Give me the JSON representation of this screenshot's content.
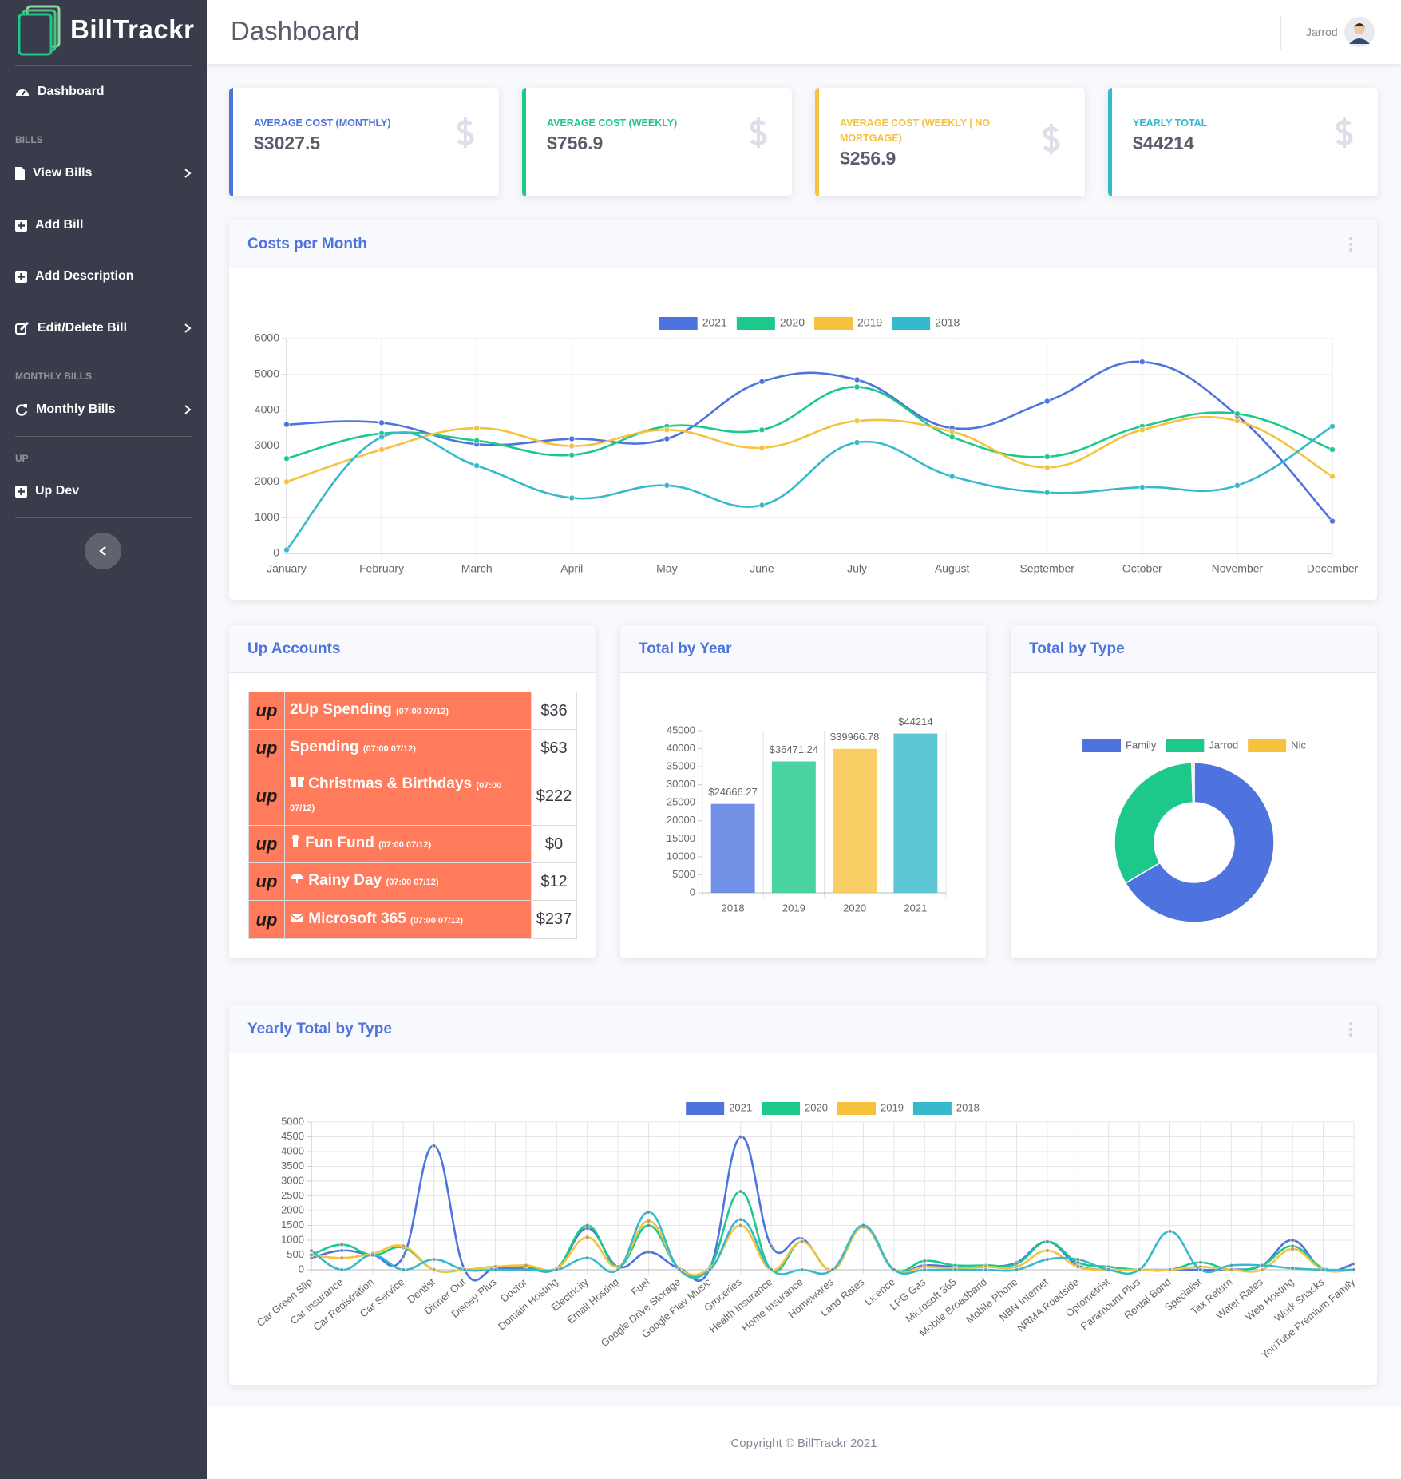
{
  "sidebar": {
    "brand": "BillTrackr",
    "dashboard": "Dashboard",
    "sections": [
      {
        "heading": "BILLS",
        "items": [
          "View Bills",
          "Add Bill",
          "Add Description",
          "Edit/Delete Bill"
        ]
      },
      {
        "heading": "MONTHLY BILLS",
        "items": [
          "Monthly Bills"
        ]
      },
      {
        "heading": "UP",
        "items": [
          "Up Dev"
        ]
      }
    ]
  },
  "header": {
    "title": "Dashboard",
    "user": "Jarrod"
  },
  "cards": [
    {
      "label": "AVERAGE COST (MONTHLY)",
      "value": "$3027.5"
    },
    {
      "label": "AVERAGE COST (WEEKLY)",
      "value": "$756.9"
    },
    {
      "label": "AVERAGE COST (WEEKLY | NO MORTGAGE)",
      "value": "$256.9"
    },
    {
      "label": "YEARLY TOTAL",
      "value": "$44214"
    }
  ],
  "up_accounts": {
    "title": "Up Accounts",
    "logo": "up",
    "rows": [
      {
        "name": "2Up Spending",
        "time": "(07:00 07/12)",
        "amount": "$36"
      },
      {
        "name": "Spending",
        "time": "(07:00 07/12)",
        "amount": "$63"
      },
      {
        "name": "Christmas & Birthdays",
        "time": "(07:00 07/12)",
        "amount": "$222"
      },
      {
        "name": "Fun Fund",
        "time": "(07:00 07/12)",
        "amount": "$0"
      },
      {
        "name": "Rainy Day",
        "time": "(07:00 07/12)",
        "amount": "$12"
      },
      {
        "name": "Microsoft 365",
        "time": "(07:00 07/12)",
        "amount": "$237"
      }
    ]
  },
  "chart_data": [
    {
      "type": "line",
      "title": "Costs per Month",
      "categories": [
        "January",
        "February",
        "March",
        "April",
        "May",
        "June",
        "July",
        "August",
        "September",
        "October",
        "November",
        "December"
      ],
      "series": [
        {
          "name": "2021",
          "color": "#4e73df",
          "values": [
            3600,
            3650,
            3050,
            3200,
            3200,
            4800,
            4850,
            3500,
            4250,
            5350,
            3850,
            900
          ]
        },
        {
          "name": "2020",
          "color": "#1cc88a",
          "values": [
            2650,
            3350,
            3150,
            2750,
            3550,
            3450,
            4650,
            3250,
            2700,
            3550,
            3900,
            2900
          ]
        },
        {
          "name": "2019",
          "color": "#f6c23e",
          "values": [
            2000,
            2900,
            3500,
            3000,
            3450,
            2950,
            3700,
            3400,
            2400,
            3450,
            3700,
            2150
          ]
        },
        {
          "name": "2018",
          "color": "#36b9cc",
          "values": [
            100,
            3250,
            2450,
            1550,
            1900,
            1350,
            3100,
            2150,
            1700,
            1850,
            1900,
            3550
          ]
        }
      ],
      "ylim": [
        0,
        6000
      ],
      "yticks": [
        0,
        1000,
        2000,
        3000,
        4000,
        5000,
        6000
      ],
      "grid": true
    },
    {
      "type": "bar",
      "title": "Total by Year",
      "categories": [
        "2018",
        "2019",
        "2020",
        "2021"
      ],
      "values": [
        24666.27,
        36471.24,
        39966.78,
        44214
      ],
      "value_labels": [
        "$24666.27",
        "$36471.24",
        "$39966.78",
        "$44214"
      ],
      "colors": [
        "#4e73df",
        "#1cc88a",
        "#f6c23e",
        "#36b9cc"
      ],
      "ylim": [
        0,
        45000
      ],
      "yticks": [
        0,
        5000,
        10000,
        15000,
        20000,
        25000,
        30000,
        35000,
        40000,
        45000
      ]
    },
    {
      "type": "doughnut",
      "title": "Total by Type",
      "labels": [
        "Family",
        "Jarrod",
        "Nic"
      ],
      "values": [
        66.5,
        33,
        0.5
      ],
      "colors": [
        "#4e73df",
        "#1cc88a",
        "#f6c23e"
      ]
    },
    {
      "type": "line",
      "title": "Yearly Total by Type",
      "categories": [
        "Car Green Slip",
        "Car Insurance",
        "Car Registration",
        "Car Service",
        "Dentist",
        "Dinner Out",
        "Disney Plus",
        "Doctor",
        "Domain Hosting",
        "Electricity",
        "Email Hosting",
        "Fuel",
        "Google Drive Storage",
        "Google Play Music",
        "Groceries",
        "Health Insurance",
        "Home Insurance",
        "Homewares",
        "Land Rates",
        "Licence",
        "LPG Gas",
        "Microsoft 365",
        "Mobile Broadband",
        "Mobile Phone",
        "NBN Internet",
        "NRMA Roadside",
        "Optometrist",
        "Paramount Plus",
        "Rental Bond",
        "Specialist",
        "Tax Return",
        "Water Rates",
        "Web Hosting",
        "Work Snacks",
        "YouTube Premium Family"
      ],
      "series": [
        {
          "name": "2021",
          "color": "#4e73df",
          "values": [
            400,
            650,
            500,
            450,
            4200,
            0,
            50,
            50,
            50,
            1400,
            100,
            600,
            50,
            50,
            4500,
            800,
            1050,
            0,
            1500,
            0,
            150,
            100,
            100,
            250,
            950,
            150,
            0,
            0,
            0,
            0,
            0,
            150,
            1000,
            0,
            200
          ]
        },
        {
          "name": "2020",
          "color": "#1cc88a",
          "values": [
            500,
            850,
            500,
            750,
            0,
            0,
            100,
            100,
            50,
            1500,
            100,
            1500,
            50,
            100,
            2650,
            0,
            950,
            0,
            1450,
            0,
            300,
            150,
            150,
            200,
            950,
            250,
            100,
            0,
            0,
            250,
            0,
            150,
            800,
            50,
            0
          ]
        },
        {
          "name": "2019",
          "color": "#f6c23e",
          "values": [
            500,
            400,
            550,
            800,
            0,
            0,
            100,
            150,
            50,
            1100,
            100,
            1650,
            50,
            50,
            1500,
            0,
            950,
            0,
            1450,
            0,
            100,
            50,
            100,
            100,
            650,
            100,
            0,
            0,
            0,
            100,
            0,
            0,
            700,
            0,
            0
          ]
        },
        {
          "name": "2018",
          "color": "#36b9cc",
          "values": [
            650,
            0,
            500,
            0,
            350,
            0,
            0,
            0,
            0,
            400,
            0,
            1950,
            0,
            0,
            1700,
            0,
            0,
            0,
            1500,
            0,
            0,
            0,
            0,
            0,
            350,
            350,
            0,
            0,
            1300,
            0,
            150,
            150,
            50,
            0,
            0
          ]
        }
      ],
      "ylim": [
        0,
        5000
      ],
      "yticks": [
        0,
        500,
        1000,
        1500,
        2000,
        2500,
        3000,
        3500,
        4000,
        4500,
        5000
      ],
      "grid": true
    }
  ],
  "footer": "Copyright © BillTrackr 2021"
}
